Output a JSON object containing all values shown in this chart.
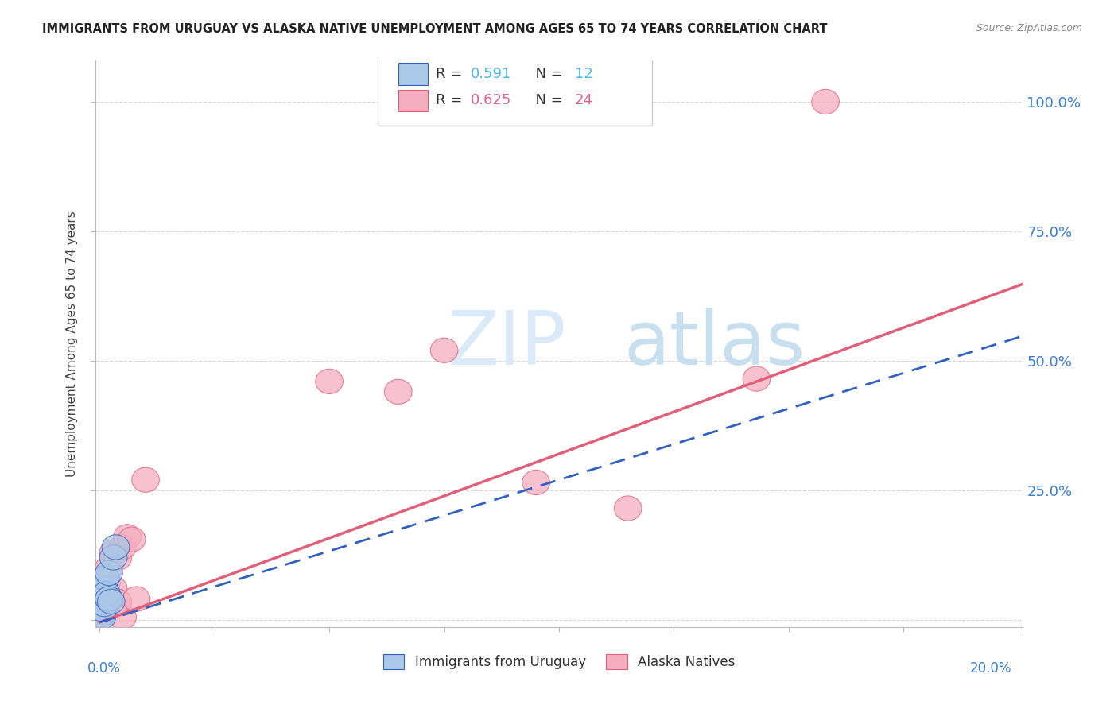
{
  "title": "IMMIGRANTS FROM URUGUAY VS ALASKA NATIVE UNEMPLOYMENT AMONG AGES 65 TO 74 YEARS CORRELATION CHART",
  "source": "Source: ZipAtlas.com",
  "ylabel": "Unemployment Among Ages 65 to 74 years",
  "yticks": [
    0.0,
    0.25,
    0.5,
    0.75,
    1.0
  ],
  "ytick_labels_right": [
    "",
    "25.0%",
    "50.0%",
    "75.0%",
    "100.0%"
  ],
  "xlim": [
    -0.001,
    0.201
  ],
  "ylim": [
    -0.015,
    1.08
  ],
  "legend_label1_pre": "R = ",
  "legend_r1": "0.591",
  "legend_label1_mid": "   N = ",
  "legend_n1": "12",
  "legend_label2_pre": "R = ",
  "legend_r2": "0.625",
  "legend_label2_mid": "   N = ",
  "legend_n2": "24",
  "legend_sublabel1": "Immigrants from Uruguay",
  "legend_sublabel2": "Alaska Natives",
  "blue_scatter_color": "#aac8e8",
  "blue_line_color": "#3060c0",
  "pink_scatter_color": "#f5adc0",
  "pink_line_color": "#e0607a",
  "accent_color": "#4db8e8",
  "watermark_color": "#daeaf8",
  "background_color": "#ffffff",
  "grid_color": "#cccccc",
  "uruguay_x": [
    0.0003,
    0.0005,
    0.0007,
    0.001,
    0.001,
    0.0013,
    0.0015,
    0.002,
    0.002,
    0.0025,
    0.003,
    0.0035
  ],
  "uruguay_y": [
    0.01,
    0.005,
    0.02,
    0.03,
    0.06,
    0.08,
    0.05,
    0.09,
    0.04,
    0.035,
    0.12,
    0.14
  ],
  "alaska_x": [
    0.0003,
    0.0005,
    0.001,
    0.001,
    0.0015,
    0.002,
    0.002,
    0.003,
    0.003,
    0.004,
    0.004,
    0.005,
    0.005,
    0.006,
    0.007,
    0.008,
    0.01,
    0.05,
    0.065,
    0.075,
    0.095,
    0.115,
    0.143,
    0.158
  ],
  "alaska_y": [
    0.005,
    0.015,
    0.04,
    0.08,
    0.07,
    0.03,
    0.1,
    0.06,
    0.13,
    0.035,
    0.12,
    0.005,
    0.14,
    0.16,
    0.155,
    0.04,
    0.27,
    0.46,
    0.44,
    0.52,
    0.265,
    0.215,
    0.465,
    1.0
  ],
  "watermark": "ZIPatlas"
}
